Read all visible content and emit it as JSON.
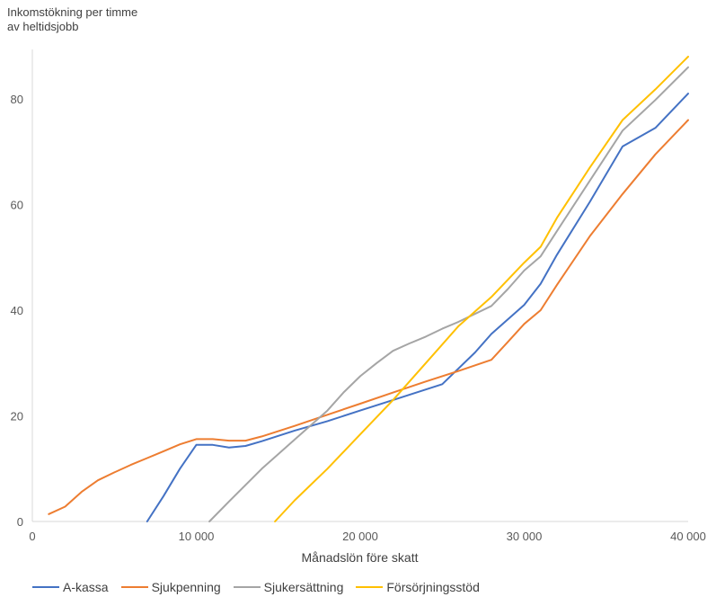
{
  "chart_data": {
    "type": "line",
    "ylabel": "Inkomstökning per timme\nav heltidsjobb",
    "xlabel": "Månadslön före skatt",
    "xlim": [
      0,
      40000
    ],
    "ylim": [
      0,
      90
    ],
    "x_ticks": [
      0,
      10000,
      20000,
      30000,
      40000
    ],
    "x_tick_labels": [
      "0",
      "10 000",
      "20 000",
      "30 000",
      "40 000"
    ],
    "y_ticks": [
      0,
      20,
      40,
      60,
      80
    ],
    "y_tick_labels": [
      "0",
      "20",
      "40",
      "60",
      "80"
    ],
    "grid": false,
    "legend_position": "bottom",
    "series": [
      {
        "name": "A-kassa",
        "color": "#4472C4",
        "points": [
          [
            7000,
            0
          ],
          [
            8000,
            4.8
          ],
          [
            9000,
            10
          ],
          [
            10000,
            14.5
          ],
          [
            11000,
            14.5
          ],
          [
            12000,
            14
          ],
          [
            13000,
            14.3
          ],
          [
            14000,
            15.2
          ],
          [
            16000,
            17.2
          ],
          [
            18000,
            19
          ],
          [
            20000,
            21
          ],
          [
            22000,
            23
          ],
          [
            25000,
            26
          ],
          [
            27000,
            32
          ],
          [
            28000,
            35.5
          ],
          [
            30000,
            41
          ],
          [
            31000,
            45
          ],
          [
            32000,
            50.5
          ],
          [
            34000,
            60.5
          ],
          [
            36000,
            71
          ],
          [
            38000,
            74.5
          ],
          [
            40000,
            81
          ]
        ]
      },
      {
        "name": "Sjukpenning",
        "color": "#ED7D31",
        "points": [
          [
            1000,
            1.4
          ],
          [
            2000,
            2.8
          ],
          [
            3000,
            5.6
          ],
          [
            4000,
            7.8
          ],
          [
            5000,
            9.3
          ],
          [
            6000,
            10.7
          ],
          [
            7000,
            12
          ],
          [
            8000,
            13.3
          ],
          [
            9000,
            14.6
          ],
          [
            10000,
            15.6
          ],
          [
            11000,
            15.6
          ],
          [
            12000,
            15.3
          ],
          [
            13000,
            15.3
          ],
          [
            14000,
            16.1
          ],
          [
            16000,
            18.1
          ],
          [
            18000,
            20.2
          ],
          [
            20000,
            22.3
          ],
          [
            22000,
            24.4
          ],
          [
            24000,
            26.5
          ],
          [
            26000,
            28.5
          ],
          [
            28000,
            30.6
          ],
          [
            29000,
            34
          ],
          [
            30000,
            37.4
          ],
          [
            31000,
            40
          ],
          [
            32000,
            44.8
          ],
          [
            34000,
            54
          ],
          [
            36000,
            62
          ],
          [
            38000,
            69.5
          ],
          [
            40000,
            76
          ]
        ]
      },
      {
        "name": "Sjukersättning",
        "color": "#A5A5A5",
        "points": [
          [
            10800,
            0
          ],
          [
            12000,
            3.8
          ],
          [
            14000,
            10
          ],
          [
            16000,
            15.5
          ],
          [
            18000,
            21
          ],
          [
            19000,
            24.5
          ],
          [
            20000,
            27.5
          ],
          [
            21000,
            30
          ],
          [
            22000,
            32.3
          ],
          [
            23000,
            33.7
          ],
          [
            24000,
            35
          ],
          [
            25000,
            36.5
          ],
          [
            26000,
            37.8
          ],
          [
            28000,
            40.8
          ],
          [
            29000,
            44
          ],
          [
            30000,
            47.5
          ],
          [
            31000,
            50.2
          ],
          [
            32000,
            55
          ],
          [
            34000,
            64.5
          ],
          [
            36000,
            74
          ],
          [
            38000,
            79.8
          ],
          [
            40000,
            86
          ]
        ]
      },
      {
        "name": "Försörjningsstöd",
        "color": "#FFC000",
        "points": [
          [
            14800,
            0
          ],
          [
            16000,
            4
          ],
          [
            18000,
            10
          ],
          [
            20000,
            16.5
          ],
          [
            22000,
            23
          ],
          [
            24000,
            30
          ],
          [
            26000,
            37
          ],
          [
            28000,
            42.5
          ],
          [
            30000,
            49
          ],
          [
            31000,
            52
          ],
          [
            32000,
            57.5
          ],
          [
            34000,
            67
          ],
          [
            36000,
            76
          ],
          [
            38000,
            81.8
          ],
          [
            40000,
            88
          ]
        ]
      }
    ]
  }
}
